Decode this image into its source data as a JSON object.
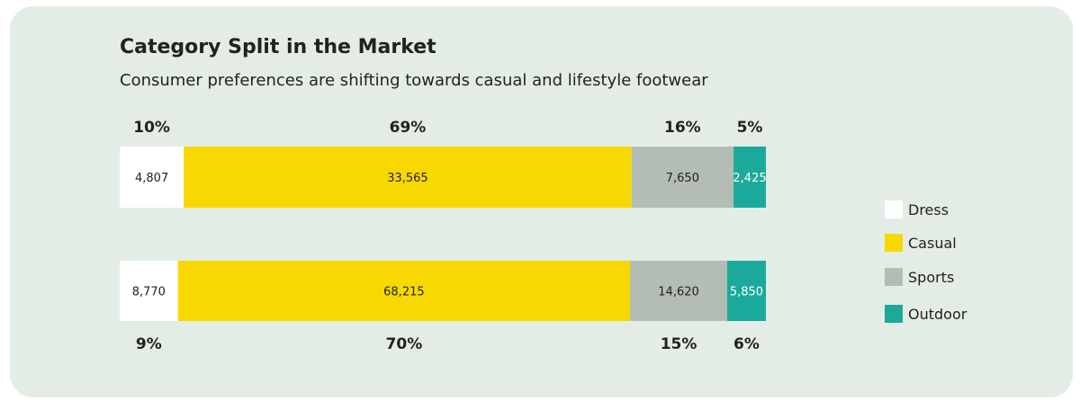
{
  "header": {
    "title": "Category Split in the Market",
    "subtitle": "Consumer preferences are shifting towards casual and lifestyle footwear"
  },
  "colors": {
    "Dress": "#ffffff",
    "Casual": "#f7d800",
    "Sports": "#b3bcb5",
    "Outdoor": "#1ba99b",
    "text": "#222222"
  },
  "chart_data": {
    "type": "bar",
    "orientation": "horizontal",
    "stacked": "100%",
    "legend_placement": "right",
    "grid": false,
    "rows": [
      {
        "values": [
          4807,
          33565,
          7650,
          2425
        ],
        "value_labels": [
          "4,807",
          "33,565",
          "7,650",
          "2,425"
        ],
        "percent_labels": [
          "10%",
          "69%",
          "16%",
          "5%"
        ],
        "percent_position": "above"
      },
      {
        "values": [
          8770,
          68215,
          14620,
          5850
        ],
        "value_labels": [
          "8,770",
          "68,215",
          "14,620",
          "5,850"
        ],
        "percent_labels": [
          "9%",
          "70%",
          "15%",
          "6%"
        ],
        "percent_position": "below"
      }
    ],
    "series": [
      {
        "name": "Dress"
      },
      {
        "name": "Casual"
      },
      {
        "name": "Sports"
      },
      {
        "name": "Outdoor"
      }
    ]
  }
}
